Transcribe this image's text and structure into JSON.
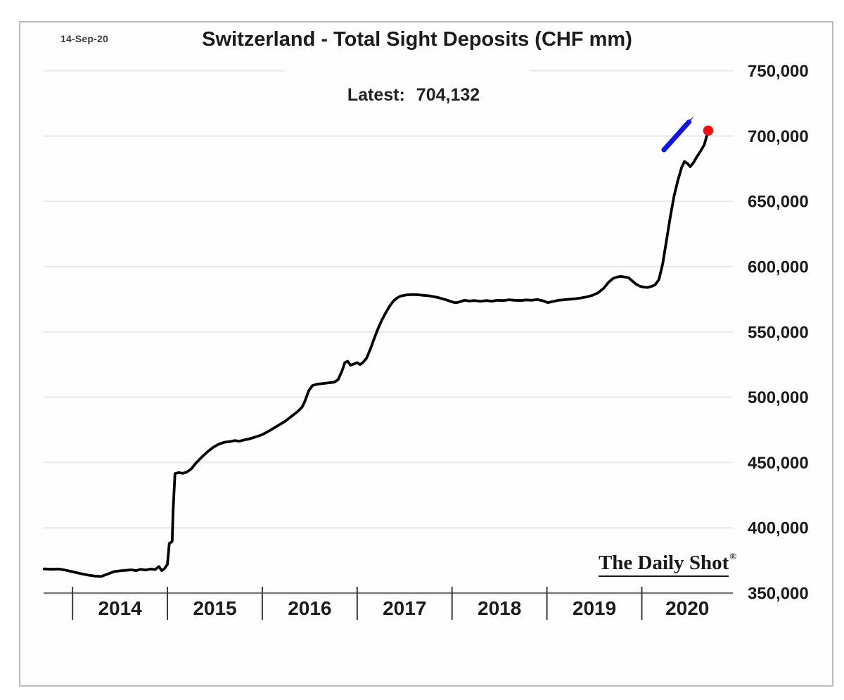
{
  "meta": {
    "date_stamp": "14-Sep-20"
  },
  "header": {
    "title": "Switzerland - Total Sight Deposits (CHF mm)"
  },
  "latest": {
    "label": "Latest:",
    "value": "704,132"
  },
  "watermark": {
    "text": "The Daily Shot",
    "reg": "®"
  },
  "annotations": {
    "dot_color": "#ee1111",
    "arrow_color": "#1515e0",
    "line_color": "#000000",
    "gridline_color": "#e8e8e8",
    "axis_color": "#7a7a7a",
    "tick_color": "#3c3c3c"
  },
  "chart_data": {
    "type": "line",
    "title": "Switzerland - Total Sight Deposits (CHF mm)",
    "subtitle": "Latest: 704,132",
    "as_of_date": "14-Sep-20",
    "unit": "CHF mm",
    "latest_value": 704132,
    "grid": true,
    "legend_position": "none",
    "ylim": [
      350000,
      750000
    ],
    "y_ticks": [
      350000,
      400000,
      450000,
      500000,
      550000,
      600000,
      650000,
      700000,
      750000
    ],
    "y_tick_labels": [
      "350,000",
      "400,000",
      "450,000",
      "500,000",
      "550,000",
      "600,000",
      "650,000",
      "700,000",
      "750,000"
    ],
    "x_range": [
      2013.695,
      2020.96
    ],
    "x_tick_years": [
      2014,
      2015,
      2016,
      2017,
      2018,
      2019,
      2020
    ],
    "x_tick_labels": [
      "2014",
      "2015",
      "2016",
      "2017",
      "2018",
      "2019",
      "2020"
    ],
    "series": [
      {
        "name": "Total Sight Deposits",
        "color": "#000000",
        "points": [
          [
            2013.7,
            368500
          ],
          [
            2013.78,
            368200
          ],
          [
            2013.85,
            368400
          ],
          [
            2013.92,
            367600
          ],
          [
            2014.0,
            366400
          ],
          [
            2014.08,
            365000
          ],
          [
            2014.16,
            363800
          ],
          [
            2014.24,
            363000
          ],
          [
            2014.3,
            362700
          ],
          [
            2014.36,
            364300
          ],
          [
            2014.44,
            366500
          ],
          [
            2014.5,
            367000
          ],
          [
            2014.56,
            367400
          ],
          [
            2014.62,
            367800
          ],
          [
            2014.67,
            367200
          ],
          [
            2014.72,
            368200
          ],
          [
            2014.77,
            367600
          ],
          [
            2014.82,
            368400
          ],
          [
            2014.87,
            368000
          ],
          [
            2014.91,
            370300
          ],
          [
            2014.94,
            367200
          ],
          [
            2014.97,
            368800
          ],
          [
            2015.0,
            372000
          ],
          [
            2015.02,
            388000
          ],
          [
            2015.05,
            389500
          ],
          [
            2015.06,
            413000
          ],
          [
            2015.08,
            441500
          ],
          [
            2015.12,
            442300
          ],
          [
            2015.16,
            441700
          ],
          [
            2015.2,
            442500
          ],
          [
            2015.25,
            445000
          ],
          [
            2015.3,
            449500
          ],
          [
            2015.36,
            454000
          ],
          [
            2015.42,
            458000
          ],
          [
            2015.48,
            461500
          ],
          [
            2015.54,
            464000
          ],
          [
            2015.6,
            465500
          ],
          [
            2015.66,
            466000
          ],
          [
            2015.71,
            466800
          ],
          [
            2015.76,
            466300
          ],
          [
            2015.81,
            467300
          ],
          [
            2015.86,
            468000
          ],
          [
            2015.92,
            469300
          ],
          [
            2016.0,
            471300
          ],
          [
            2016.08,
            474500
          ],
          [
            2016.16,
            478000
          ],
          [
            2016.24,
            481500
          ],
          [
            2016.32,
            486000
          ],
          [
            2016.38,
            489500
          ],
          [
            2016.42,
            492500
          ],
          [
            2016.45,
            497000
          ],
          [
            2016.49,
            505000
          ],
          [
            2016.53,
            509000
          ],
          [
            2016.58,
            510000
          ],
          [
            2016.64,
            510500
          ],
          [
            2016.7,
            511000
          ],
          [
            2016.76,
            511500
          ],
          [
            2016.8,
            513500
          ],
          [
            2016.84,
            520000
          ],
          [
            2016.87,
            526500
          ],
          [
            2016.9,
            527500
          ],
          [
            2016.93,
            524500
          ],
          [
            2016.97,
            525500
          ],
          [
            2017.0,
            526500
          ],
          [
            2017.03,
            525000
          ],
          [
            2017.06,
            526500
          ],
          [
            2017.1,
            530000
          ],
          [
            2017.14,
            537000
          ],
          [
            2017.18,
            545000
          ],
          [
            2017.22,
            552500
          ],
          [
            2017.26,
            559000
          ],
          [
            2017.3,
            564500
          ],
          [
            2017.34,
            569500
          ],
          [
            2017.38,
            573500
          ],
          [
            2017.42,
            576000
          ],
          [
            2017.46,
            577500
          ],
          [
            2017.52,
            578300
          ],
          [
            2017.58,
            578600
          ],
          [
            2017.64,
            578400
          ],
          [
            2017.7,
            578000
          ],
          [
            2017.76,
            577600
          ],
          [
            2017.82,
            576800
          ],
          [
            2017.88,
            575800
          ],
          [
            2017.94,
            574500
          ],
          [
            2018.0,
            573000
          ],
          [
            2018.04,
            572300
          ],
          [
            2018.08,
            573000
          ],
          [
            2018.13,
            574200
          ],
          [
            2018.18,
            573600
          ],
          [
            2018.24,
            574000
          ],
          [
            2018.3,
            573400
          ],
          [
            2018.36,
            574000
          ],
          [
            2018.42,
            573500
          ],
          [
            2018.48,
            574200
          ],
          [
            2018.54,
            574000
          ],
          [
            2018.6,
            574600
          ],
          [
            2018.66,
            574200
          ],
          [
            2018.72,
            574000
          ],
          [
            2018.78,
            574500
          ],
          [
            2018.84,
            574200
          ],
          [
            2018.9,
            574800
          ],
          [
            2018.96,
            573800
          ],
          [
            2019.01,
            572400
          ],
          [
            2019.06,
            573200
          ],
          [
            2019.12,
            574200
          ],
          [
            2019.18,
            574600
          ],
          [
            2019.24,
            575000
          ],
          [
            2019.3,
            575400
          ],
          [
            2019.36,
            576000
          ],
          [
            2019.42,
            576800
          ],
          [
            2019.48,
            578000
          ],
          [
            2019.54,
            580000
          ],
          [
            2019.6,
            583500
          ],
          [
            2019.65,
            588000
          ],
          [
            2019.7,
            591000
          ],
          [
            2019.74,
            592000
          ],
          [
            2019.78,
            592500
          ],
          [
            2019.82,
            592000
          ],
          [
            2019.86,
            591500
          ],
          [
            2019.9,
            589000
          ],
          [
            2019.94,
            586500
          ],
          [
            2019.98,
            585000
          ],
          [
            2020.02,
            584300
          ],
          [
            2020.06,
            584000
          ],
          [
            2020.1,
            584800
          ],
          [
            2020.14,
            586000
          ],
          [
            2020.18,
            590000
          ],
          [
            2020.22,
            602000
          ],
          [
            2020.26,
            620000
          ],
          [
            2020.3,
            638000
          ],
          [
            2020.34,
            654000
          ],
          [
            2020.38,
            666000
          ],
          [
            2020.42,
            676000
          ],
          [
            2020.45,
            680500
          ],
          [
            2020.48,
            679000
          ],
          [
            2020.51,
            676500
          ],
          [
            2020.54,
            679000
          ],
          [
            2020.58,
            684000
          ],
          [
            2020.62,
            688500
          ],
          [
            2020.66,
            693500
          ],
          [
            2020.7,
            704132
          ]
        ]
      }
    ]
  }
}
